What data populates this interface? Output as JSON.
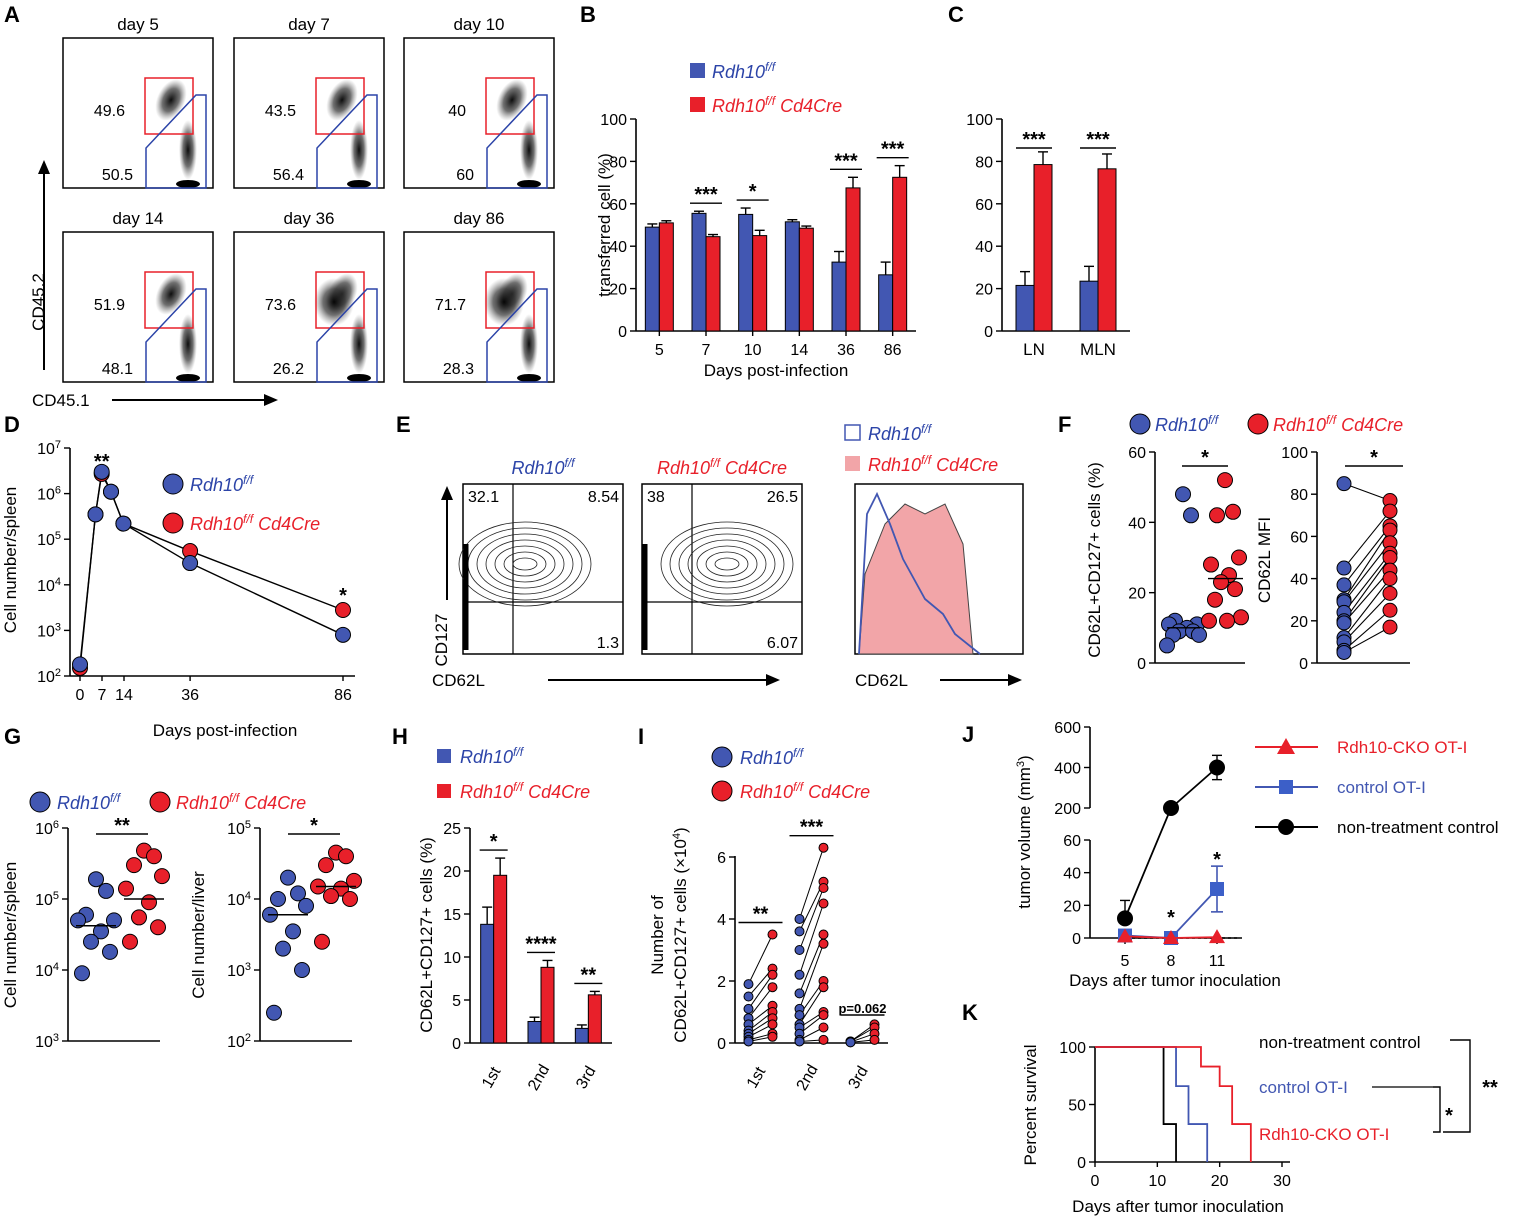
{
  "colors": {
    "blue": "#4257b2",
    "red": "#e8202a",
    "black": "#000000"
  },
  "legend": {
    "wt": "Rdh10",
    "wt_sup": "f/f",
    "cko_suffix": "Cd4Cre",
    "tumor_cko": "Rdh10-CKO OT-I",
    "tumor_ctrl": "control OT-I",
    "tumor_none": "non-treatment control"
  },
  "chart_data": [
    {
      "panel": "A",
      "type": "flow-cytometry",
      "xlabel": "CD45.1",
      "ylabel": "CD45.2",
      "plots": [
        {
          "title": "day 5",
          "upper": "49.6",
          "lower": "50.5"
        },
        {
          "title": "day 7",
          "upper": "43.5",
          "lower": "56.4"
        },
        {
          "title": "day 10",
          "upper": "40",
          "lower": "60"
        },
        {
          "title": "day 14",
          "upper": "51.9",
          "lower": "48.1"
        },
        {
          "title": "day 36",
          "upper": "73.6",
          "lower": "26.2"
        },
        {
          "title": "day 86",
          "upper": "71.7",
          "lower": "28.3"
        }
      ]
    },
    {
      "panel": "B",
      "type": "bar",
      "categories": [
        "5",
        "7",
        "10",
        "14",
        "36",
        "86"
      ],
      "series": [
        {
          "name": "Rdh10 f/f",
          "values": [
            49,
            55.5,
            55,
            51.5,
            32.5,
            26.5
          ],
          "err": [
            1.5,
            1,
            3,
            1,
            5,
            6
          ]
        },
        {
          "name": "Rdh10 f/f Cd4Cre",
          "values": [
            51,
            44.5,
            45,
            48.5,
            67.5,
            72.5
          ],
          "err": [
            1,
            1,
            2.5,
            1,
            5,
            5.5
          ]
        }
      ],
      "sig": [
        "",
        "***",
        "*",
        "",
        "***",
        "***"
      ],
      "xlabel": "Days post-infection",
      "ylabel": "transferred cell (%)",
      "ylim": [
        0,
        100
      ],
      "yticks": [
        "0",
        "20",
        "40",
        "60",
        "80",
        "100"
      ]
    },
    {
      "panel": "C",
      "type": "bar",
      "categories": [
        "LN",
        "MLN"
      ],
      "series": [
        {
          "name": "Rdh10 f/f",
          "values": [
            21.5,
            23.5
          ],
          "err": [
            6.5,
            7
          ]
        },
        {
          "name": "Rdh10 f/f Cd4Cre",
          "values": [
            78.5,
            76.5
          ],
          "err": [
            6,
            7
          ]
        }
      ],
      "sig": [
        "***",
        "***"
      ],
      "ylim": [
        0,
        100
      ],
      "yticks": [
        "0",
        "20",
        "40",
        "60",
        "80",
        "100"
      ]
    },
    {
      "panel": "D",
      "type": "line",
      "yscale": "log",
      "series": [
        {
          "name": "Rdh10 f/f",
          "x": [
            0,
            5,
            7,
            10,
            14,
            36,
            86
          ],
          "y": [
            180,
            350000,
            3000000,
            1100000,
            220000,
            30000,
            800
          ]
        },
        {
          "name": "Rdh10 f/f Cd4Cre",
          "x": [
            0,
            5,
            7,
            10,
            14,
            36,
            86
          ],
          "y": [
            150,
            350000,
            2700000,
            1100000,
            220000,
            55000,
            2800
          ]
        }
      ],
      "sig": [
        {
          "x": 7,
          "text": "**"
        },
        {
          "x": 86,
          "text": "*"
        }
      ],
      "xlabel": "Days post-infection",
      "ylabel": "Cell number/spleen",
      "xticks": [
        "0",
        "7",
        "14",
        "36",
        "86"
      ],
      "yticks_exp": [
        "2",
        "3",
        "4",
        "5",
        "6",
        "7"
      ]
    },
    {
      "panel": "E",
      "type": "flow-cytometry",
      "xlabel": "CD62L",
      "ylabel": "CD127",
      "plots": [
        {
          "title": "Rdh10 f/f",
          "ul": "32.1",
          "ur": "8.54",
          "lr": "1.3"
        },
        {
          "title": "Rdh10 f/f Cd4Cre",
          "ul": "38",
          "ur": "26.5",
          "lr": "6.07"
        }
      ],
      "histogram_xlabel": "CD62L"
    },
    {
      "panel": "F",
      "type": "scatter",
      "left": {
        "ylabel": "CD62L+CD127+ cells (%)",
        "ylim": [
          0,
          60
        ],
        "yticks": [
          "0",
          "20",
          "40",
          "60"
        ],
        "wt": [
          48,
          42,
          12,
          11,
          11,
          10,
          9,
          9,
          8,
          8,
          5
        ],
        "cko": [
          52,
          43,
          42,
          30,
          28,
          25,
          23,
          21,
          18,
          13,
          12,
          12
        ],
        "median_wt": 10,
        "median_cko": 24,
        "sig": "*"
      },
      "right": {
        "ylabel": "CD62L MFI",
        "ylim": [
          0,
          100
        ],
        "yticks": [
          "0",
          "20",
          "40",
          "60",
          "80",
          "100"
        ],
        "pairs": [
          [
            85,
            77
          ],
          [
            45,
            72
          ],
          [
            37,
            65
          ],
          [
            30,
            63
          ],
          [
            29,
            57
          ],
          [
            24,
            52
          ],
          [
            20,
            50
          ],
          [
            19,
            44
          ],
          [
            12,
            40
          ],
          [
            10,
            33
          ],
          [
            6,
            25
          ],
          [
            5,
            17
          ]
        ],
        "sig": "*"
      }
    },
    {
      "panel": "G",
      "type": "scatter",
      "yscale": "log",
      "left": {
        "ylabel": "Cell number/spleen",
        "yticks_exp": [
          "3",
          "4",
          "5",
          "6"
        ],
        "wt": [
          190000,
          130000,
          60000,
          50000,
          50000,
          35000,
          25000,
          18000,
          9000
        ],
        "cko": [
          480000,
          400000,
          300000,
          210000,
          140000,
          90000,
          55000,
          40000,
          25000
        ],
        "median_wt": 42000,
        "median_cko": 100000,
        "sig": "**"
      },
      "right": {
        "ylabel": "Cell number/liver",
        "yticks_exp": [
          "2",
          "3",
          "4",
          "5"
        ],
        "wt": [
          20000,
          12000,
          10000,
          8000,
          6000,
          3500,
          2000,
          1000,
          250
        ],
        "cko": [
          45000,
          40000,
          30000,
          18000,
          15000,
          14000,
          11000,
          10000,
          2500
        ],
        "median_wt": 6000,
        "median_cko": 15000,
        "sig": "*"
      }
    },
    {
      "panel": "H",
      "type": "bar",
      "categories": [
        "1st",
        "2nd",
        "3rd"
      ],
      "series": [
        {
          "name": "Rdh10 f/f",
          "values": [
            13.8,
            2.5,
            1.7
          ],
          "err": [
            2,
            0.5,
            0.4
          ]
        },
        {
          "name": "Rdh10 f/f Cd4Cre",
          "values": [
            19.5,
            8.8,
            5.6
          ],
          "err": [
            2,
            0.8,
            0.4
          ]
        }
      ],
      "sig": [
        "*",
        "****",
        "**"
      ],
      "ylabel": "CD62L+CD127+ cells (%)",
      "ylim": [
        0,
        25
      ],
      "yticks": [
        "0",
        "5",
        "10",
        "15",
        "20",
        "25"
      ]
    },
    {
      "panel": "I",
      "type": "scatter-paired",
      "categories": [
        "1st",
        "2nd",
        "3rd"
      ],
      "pairs": [
        [
          [
            1.9,
            3.5
          ],
          [
            1.5,
            2.4
          ],
          [
            1.1,
            2.2
          ],
          [
            0.8,
            1.8
          ],
          [
            0.6,
            1.2
          ],
          [
            0.4,
            1.0
          ],
          [
            0.3,
            0.8
          ],
          [
            0.2,
            0.6
          ],
          [
            0.1,
            0.3
          ],
          [
            0.05,
            0.2
          ]
        ],
        [
          [
            4.0,
            6.3
          ],
          [
            3.6,
            5.2
          ],
          [
            3.0,
            5.0
          ],
          [
            2.2,
            4.5
          ],
          [
            1.6,
            3.5
          ],
          [
            1.1,
            3.2
          ],
          [
            0.9,
            2.0
          ],
          [
            0.6,
            1.8
          ],
          [
            0.5,
            1.0
          ],
          [
            0.3,
            0.9
          ],
          [
            0.1,
            0.5
          ],
          [
            0.05,
            0.1
          ]
        ],
        [
          [
            0.05,
            0.6
          ],
          [
            0.05,
            0.5
          ],
          [
            0.03,
            0.3
          ],
          [
            0.02,
            0.1
          ]
        ]
      ],
      "sig": [
        "**",
        "***",
        "p=0.062"
      ],
      "ylabel_line1": "Number of",
      "ylabel_line2": "CD62L+CD127+ cells (×10",
      "ylabel_exp": "4",
      "ylabel_close": ")",
      "ylim": [
        0,
        7
      ],
      "yticks": [
        "0",
        "2",
        "4",
        "6"
      ]
    },
    {
      "panel": "J",
      "type": "line",
      "xlabel": "Days after tumor inoculation",
      "ylabel": "tumor volume (mm",
      "ylabel_exp": "3",
      "ylabel_close": ")",
      "xticks": [
        "5",
        "8",
        "11"
      ],
      "yticks_top": [
        "200",
        "400",
        "600"
      ],
      "yticks_bottom": [
        "0",
        "20",
        "40",
        "60"
      ],
      "series": [
        {
          "name": "Rdh10-CKO OT-I",
          "x": [
            5,
            8,
            11
          ],
          "y": [
            1,
            0,
            0.5
          ]
        },
        {
          "name": "control OT-I",
          "x": [
            5,
            8,
            11
          ],
          "y": [
            1.5,
            0,
            30
          ],
          "err": [
            1.5,
            0,
            14
          ]
        },
        {
          "name": "non-treatment control",
          "x": [
            5,
            8,
            11
          ],
          "y": [
            12,
            200,
            400
          ],
          "err": [
            11,
            0,
            60
          ]
        }
      ],
      "sig": [
        {
          "x": 8,
          "text": "*"
        },
        {
          "x": 11,
          "text": "*"
        }
      ]
    },
    {
      "panel": "K",
      "type": "line",
      "subtype": "survival",
      "xlabel": "Days after tumor inoculation",
      "ylabel": "Percent survival",
      "xticks": [
        "0",
        "10",
        "20",
        "30"
      ],
      "yticks": [
        "0",
        "50",
        "100"
      ],
      "series": [
        {
          "name": "non-treatment control",
          "steps": [
            [
              0,
              100
            ],
            [
              11,
              100
            ],
            [
              11,
              33
            ],
            [
              13,
              33
            ],
            [
              13,
              0
            ]
          ]
        },
        {
          "name": "control OT-I",
          "steps": [
            [
              0,
              100
            ],
            [
              13,
              100
            ],
            [
              13,
              66
            ],
            [
              15,
              66
            ],
            [
              15,
              33
            ],
            [
              18,
              33
            ],
            [
              18,
              0
            ]
          ]
        },
        {
          "name": "Rdh10-CKO OT-I",
          "steps": [
            [
              0,
              100
            ],
            [
              17,
              100
            ],
            [
              17,
              83
            ],
            [
              20,
              83
            ],
            [
              20,
              66
            ],
            [
              22,
              66
            ],
            [
              22,
              33
            ],
            [
              25,
              33
            ],
            [
              25,
              0
            ]
          ]
        }
      ],
      "sig_inner": "*",
      "sig_outer": "**"
    }
  ]
}
